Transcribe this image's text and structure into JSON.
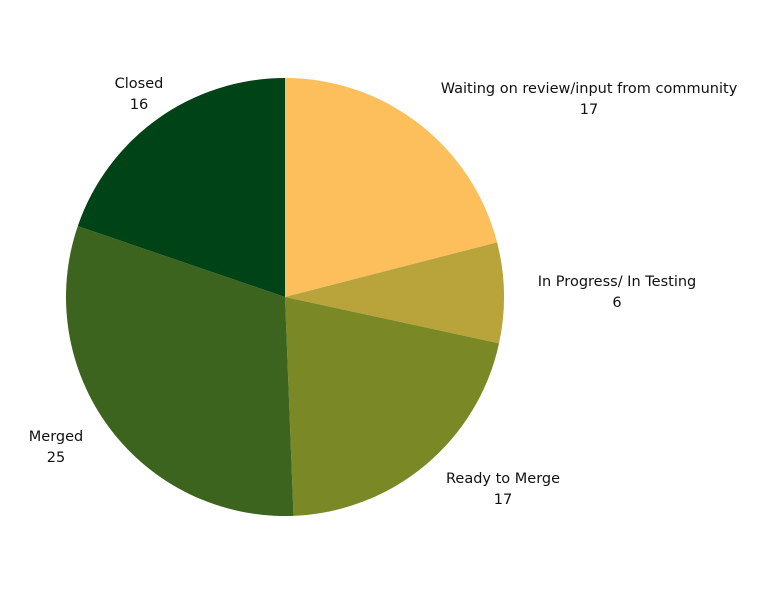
{
  "chart_data": {
    "type": "pie",
    "categories": [
      "Waiting on review/input from community",
      "In Progress/ In Testing",
      "Ready to Merge",
      "Merged",
      "Closed"
    ],
    "values": [
      17,
      6,
      17,
      25,
      16
    ],
    "colors": [
      "#fdbe5c",
      "#b8a43a",
      "#7a8826",
      "#3d641e",
      "#004316"
    ]
  }
}
